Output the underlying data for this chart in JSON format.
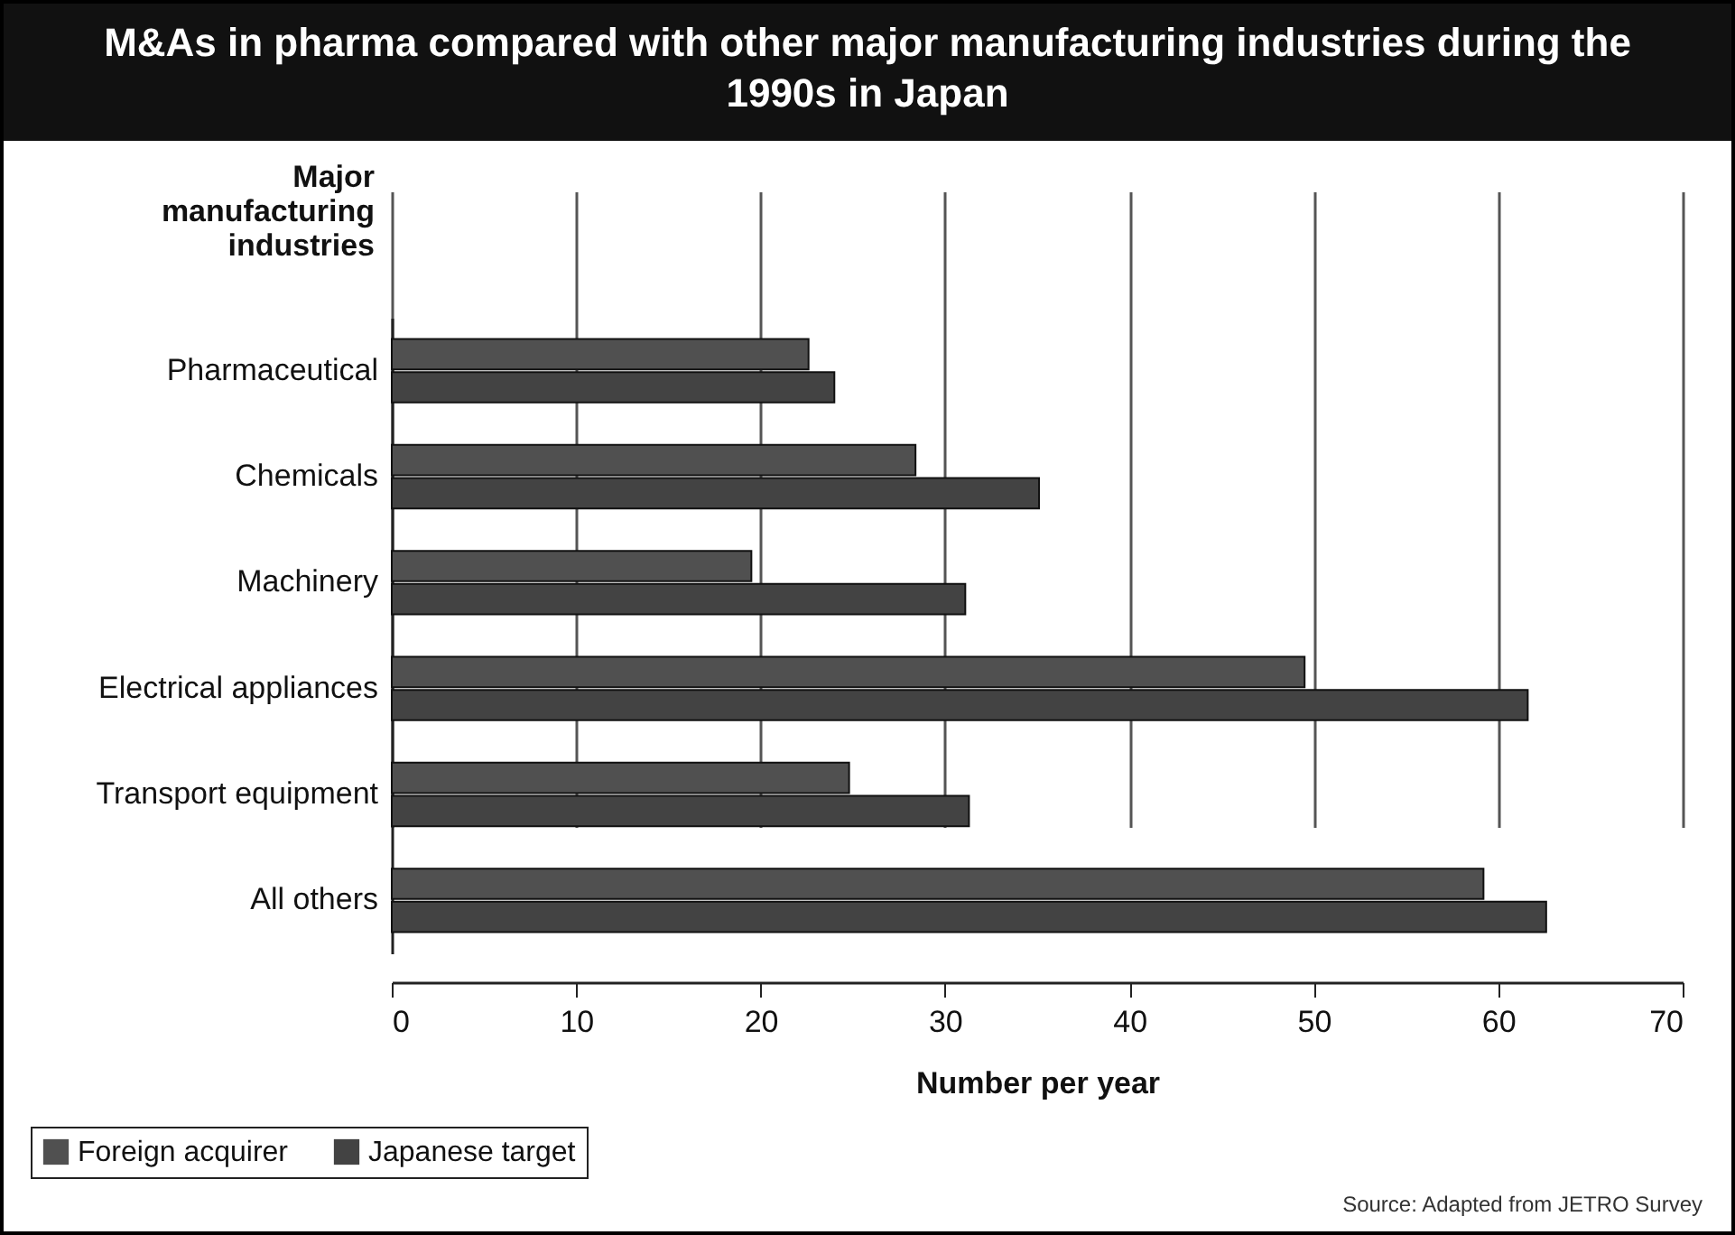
{
  "chart_data": {
    "type": "bar",
    "orientation": "horizontal",
    "title": "M&As in pharma compared with other major manufacturing industries during the 1990s in Japan",
    "ylabel": "Major manufacturing industries",
    "xlabel": "Number per year",
    "categories": [
      "Pharmaceutical",
      "Chemicals",
      "Machinery",
      "Electrical appliances",
      "Transport equipment",
      "All others"
    ],
    "series": [
      {
        "name": "Foreign acquirer",
        "color": "#505050",
        "values": [
          22.6,
          28.4,
          19.5,
          49.5,
          24.8,
          59.2
        ]
      },
      {
        "name": "Japanese target",
        "color": "#434343",
        "values": [
          24.0,
          35.1,
          31.1,
          61.6,
          31.3,
          62.6
        ]
      }
    ],
    "xlim": [
      0,
      70
    ],
    "xticks": [
      0,
      10,
      20,
      30,
      40,
      50,
      60,
      70
    ],
    "grid": "x",
    "legend": "bottom left",
    "annotations": [
      "Source: Adapted from JETRO Survey"
    ]
  }
}
